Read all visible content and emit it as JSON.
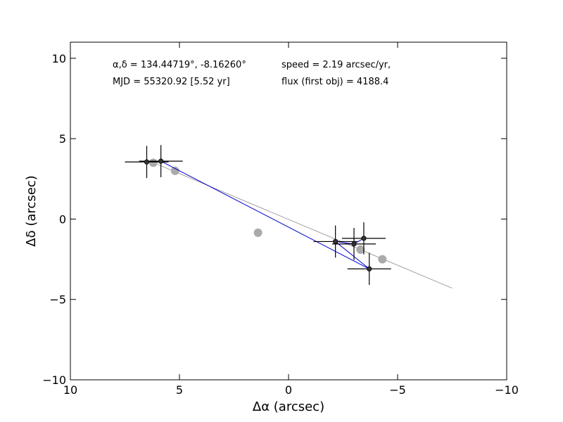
{
  "chart_data": {
    "type": "scatter",
    "xlabel": "Δα (arcsec)",
    "ylabel": "Δδ (arcsec)",
    "xlim": [
      10,
      -10
    ],
    "ylim": [
      -10,
      11
    ],
    "x_ticks": [
      "10",
      "5",
      "0",
      "−5",
      "−10"
    ],
    "y_ticks": [
      "10",
      "5",
      "0",
      "−5",
      "−10"
    ],
    "x_tick_values": [
      10,
      5,
      0,
      -5,
      -10
    ],
    "y_tick_values": [
      10,
      5,
      0,
      -5,
      -10
    ],
    "grid": false,
    "annotations": [
      "α,δ = 134.44719°, -8.16260°",
      "MJD = 55320.92 [5.52 yr]",
      "speed = 2.19 arcsec/yr,",
      "flux (first obj) = 4188.4"
    ],
    "fit_line": {
      "x": [
        6.0,
        -7.5
      ],
      "y": [
        3.4,
        -4.3
      ],
      "color": "#a0a0a0"
    },
    "model_points": {
      "color": "#aaaaaa",
      "x": [
        6.2,
        5.2,
        1.4,
        -3.3,
        -4.3
      ],
      "y": [
        3.5,
        3.0,
        -0.85,
        -1.9,
        -2.5
      ]
    },
    "observed_points": {
      "color": "#333333",
      "line_color": "#0000cc",
      "x": [
        6.5,
        5.85,
        -3.7,
        -2.15,
        -3.0,
        -3.45
      ],
      "y": [
        3.55,
        3.6,
        -3.1,
        -1.4,
        -1.55,
        -1.2
      ],
      "xerr": [
        1.0,
        1.0,
        1.0,
        1.0,
        1.0,
        1.0
      ],
      "yerr": [
        1.0,
        1.0,
        1.0,
        1.0,
        1.0,
        1.0
      ]
    }
  }
}
